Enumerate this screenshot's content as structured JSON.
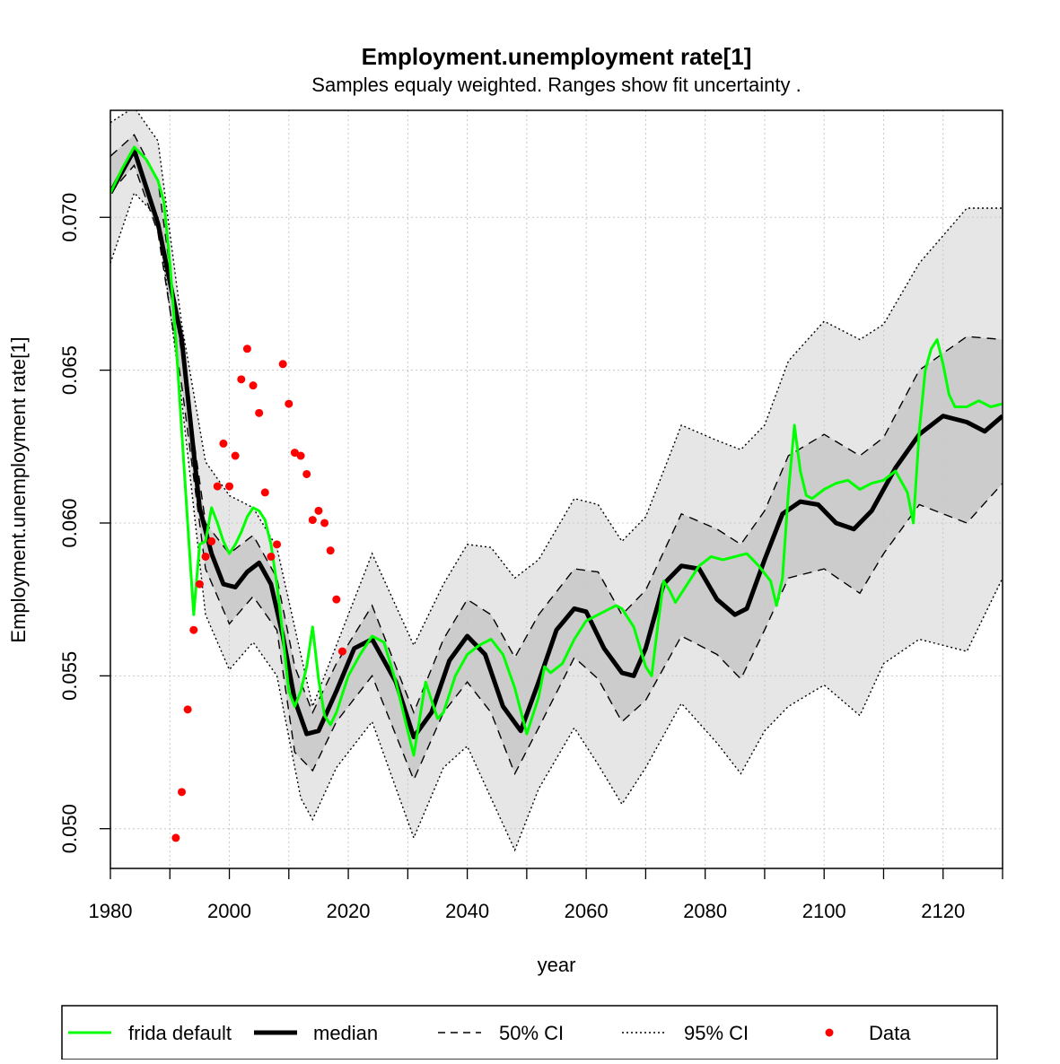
{
  "chart_data": {
    "type": "line",
    "title": "Employment.unemployment rate[1]",
    "subtitle": "Samples equaly weighted. Ranges show  fit uncertainty .",
    "xlabel": "year",
    "ylabel": "Employment.unemployment rate[1]",
    "xlim": [
      1980,
      2130
    ],
    "ylim": [
      0.0487,
      0.0735
    ],
    "x_ticks": [
      1980,
      2000,
      2020,
      2040,
      2060,
      2080,
      2100,
      2120
    ],
    "y_ticks": [
      0.05,
      0.055,
      0.06,
      0.065,
      0.07
    ],
    "y_tick_labels": [
      "0.050",
      "0.055",
      "0.060",
      "0.065",
      "0.070"
    ],
    "grid": true,
    "legend_position": "bottom",
    "legend": [
      {
        "label": "frida default",
        "style": "green-line"
      },
      {
        "label": "median",
        "style": "thick-black-line"
      },
      {
        "label": "50% CI",
        "style": "dashed-line"
      },
      {
        "label": "95% CI",
        "style": "dotted-line"
      },
      {
        "label": "Data",
        "style": "red-point"
      }
    ],
    "colors": {
      "frida_default": "#00ff00",
      "median": "#000000",
      "ci50_fill": "#cccccc",
      "ci95_fill": "#e6e6e6",
      "data": "#ff0000",
      "grid": "#c8c8c8"
    },
    "ci95": {
      "x": [
        1980,
        1984,
        1988,
        1992,
        1996,
        2000,
        2004,
        2008,
        2012,
        2014,
        2018,
        2024,
        2031,
        2036,
        2040,
        2044,
        2048,
        2052,
        2058,
        2062,
        2066,
        2070,
        2076,
        2082,
        2086,
        2090,
        2094,
        2100,
        2106,
        2110,
        2116,
        2124,
        2130
      ],
      "upper": [
        0.0731,
        0.0736,
        0.0725,
        0.0665,
        0.062,
        0.0609,
        0.0605,
        0.0592,
        0.0557,
        0.054,
        0.056,
        0.059,
        0.056,
        0.058,
        0.0593,
        0.0592,
        0.0582,
        0.0588,
        0.0608,
        0.0606,
        0.0594,
        0.0602,
        0.0632,
        0.0627,
        0.0624,
        0.0632,
        0.0653,
        0.0666,
        0.066,
        0.0665,
        0.0685,
        0.0703,
        0.0703
      ],
      "lower": [
        0.0685,
        0.0708,
        0.07,
        0.064,
        0.057,
        0.0552,
        0.0561,
        0.055,
        0.051,
        0.0503,
        0.052,
        0.0535,
        0.0497,
        0.052,
        0.0527,
        0.051,
        0.0493,
        0.0513,
        0.0533,
        0.0521,
        0.0508,
        0.052,
        0.0541,
        0.0528,
        0.0518,
        0.0532,
        0.054,
        0.0547,
        0.0537,
        0.0554,
        0.0562,
        0.0558,
        0.0582
      ]
    },
    "ci50": {
      "x": [
        1980,
        1984,
        1988,
        1992,
        1996,
        2000,
        2004,
        2008,
        2011,
        2014,
        2018,
        2024,
        2031,
        2036,
        2040,
        2044,
        2048,
        2052,
        2058,
        2062,
        2066,
        2070,
        2076,
        2082,
        2086,
        2090,
        2094,
        2100,
        2106,
        2110,
        2116,
        2124,
        2130
      ],
      "upper": [
        0.072,
        0.0727,
        0.0712,
        0.0655,
        0.06,
        0.059,
        0.0596,
        0.0582,
        0.0553,
        0.0538,
        0.0554,
        0.0573,
        0.0538,
        0.0562,
        0.0575,
        0.057,
        0.0556,
        0.057,
        0.0585,
        0.0584,
        0.057,
        0.0578,
        0.0603,
        0.0598,
        0.0593,
        0.0604,
        0.0622,
        0.0629,
        0.0622,
        0.0628,
        0.065,
        0.0661,
        0.066
      ],
      "lower": [
        0.0708,
        0.0717,
        0.0695,
        0.0645,
        0.0585,
        0.0567,
        0.0576,
        0.0565,
        0.0525,
        0.0519,
        0.0535,
        0.055,
        0.0516,
        0.0538,
        0.0548,
        0.0538,
        0.0518,
        0.0533,
        0.0556,
        0.0549,
        0.0535,
        0.0542,
        0.0563,
        0.0557,
        0.0549,
        0.0565,
        0.0582,
        0.0585,
        0.0577,
        0.059,
        0.0606,
        0.06,
        0.0613
      ]
    },
    "median": {
      "x": [
        1980,
        1984,
        1988,
        1992,
        1995,
        1997,
        1999,
        2001,
        2003,
        2005,
        2007,
        2009,
        2011,
        2013,
        2015,
        2018,
        2021,
        2024,
        2028,
        2031,
        2034,
        2037,
        2040,
        2043,
        2046,
        2049,
        2052,
        2055,
        2058,
        2060,
        2063,
        2066,
        2068,
        2070,
        2073,
        2076,
        2079,
        2082,
        2085,
        2087,
        2090,
        2093,
        2096,
        2099,
        2102,
        2105,
        2108,
        2112,
        2116,
        2120,
        2124,
        2127,
        2130
      ],
      "values": [
        0.0708,
        0.0722,
        0.0698,
        0.066,
        0.0605,
        0.059,
        0.058,
        0.0579,
        0.0584,
        0.0587,
        0.058,
        0.0563,
        0.0542,
        0.0531,
        0.0532,
        0.0545,
        0.0559,
        0.0562,
        0.0548,
        0.053,
        0.0538,
        0.0555,
        0.0563,
        0.0557,
        0.054,
        0.0532,
        0.0548,
        0.0565,
        0.0572,
        0.0571,
        0.0559,
        0.0551,
        0.055,
        0.0559,
        0.058,
        0.0586,
        0.0585,
        0.0575,
        0.057,
        0.0572,
        0.0588,
        0.0603,
        0.0607,
        0.0606,
        0.06,
        0.0598,
        0.0604,
        0.0618,
        0.0629,
        0.0635,
        0.0633,
        0.063,
        0.0635
      ]
    },
    "frida_default": {
      "x": [
        1980,
        1982,
        1984,
        1986,
        1988,
        1989,
        1990,
        1991,
        1992,
        1993,
        1994,
        1995,
        1996,
        1997,
        1998,
        1999,
        2000,
        2001,
        2002,
        2003,
        2004,
        2005,
        2006,
        2007,
        2008,
        2009,
        2010,
        2011,
        2012,
        2013,
        2014,
        2015,
        2016,
        2017,
        2018,
        2020,
        2022,
        2024,
        2026,
        2028,
        2030,
        2031,
        2032,
        2033,
        2034,
        2035,
        2036,
        2038,
        2040,
        2042,
        2044,
        2046,
        2048,
        2050,
        2052,
        2053,
        2054,
        2056,
        2058,
        2060,
        2062,
        2064,
        2065,
        2066,
        2068,
        2070,
        2071,
        2072,
        2073,
        2074,
        2075,
        2077,
        2079,
        2081,
        2083,
        2085,
        2087,
        2089,
        2091,
        2092,
        2093,
        2094,
        2095,
        2096,
        2097,
        2098,
        2100,
        2102,
        2104,
        2106,
        2108,
        2110,
        2112,
        2114,
        2115,
        2116,
        2117,
        2118,
        2119,
        2120,
        2121,
        2122,
        2124,
        2126,
        2128,
        2130
      ],
      "values": [
        0.0708,
        0.0716,
        0.0723,
        0.0719,
        0.0712,
        0.0705,
        0.0685,
        0.066,
        0.063,
        0.06,
        0.057,
        0.0593,
        0.0594,
        0.0605,
        0.06,
        0.0594,
        0.059,
        0.0593,
        0.0597,
        0.0602,
        0.0605,
        0.0604,
        0.0601,
        0.0593,
        0.058,
        0.0563,
        0.0545,
        0.054,
        0.0545,
        0.0553,
        0.0566,
        0.0549,
        0.0537,
        0.0534,
        0.0538,
        0.055,
        0.0557,
        0.0563,
        0.0561,
        0.0548,
        0.0532,
        0.0524,
        0.0536,
        0.0548,
        0.0542,
        0.0536,
        0.0538,
        0.055,
        0.0557,
        0.056,
        0.0562,
        0.0557,
        0.0546,
        0.0531,
        0.0543,
        0.0553,
        0.0551,
        0.0554,
        0.0562,
        0.0568,
        0.057,
        0.0572,
        0.0573,
        0.0572,
        0.0566,
        0.0553,
        0.055,
        0.0566,
        0.0581,
        0.0578,
        0.0574,
        0.058,
        0.0586,
        0.0589,
        0.0588,
        0.0589,
        0.059,
        0.0586,
        0.0581,
        0.0573,
        0.0582,
        0.061,
        0.0632,
        0.0617,
        0.0609,
        0.0608,
        0.0611,
        0.0613,
        0.0614,
        0.0611,
        0.0613,
        0.0614,
        0.0617,
        0.061,
        0.06,
        0.063,
        0.065,
        0.0657,
        0.066,
        0.0652,
        0.0642,
        0.0638,
        0.0638,
        0.064,
        0.0638,
        0.0639
      ]
    },
    "data_points": {
      "x": [
        1991,
        1992,
        1993,
        1994,
        1995,
        1996,
        1997,
        1998,
        1999,
        2000,
        2001,
        2002,
        2003,
        2004,
        2005,
        2006,
        2007,
        2008,
        2009,
        2010,
        2011,
        2012,
        2013,
        2014,
        2015,
        2016,
        2017,
        2018,
        2019
      ],
      "values": [
        0.0497,
        0.0512,
        0.0539,
        0.0565,
        0.058,
        0.0589,
        0.0594,
        0.0612,
        0.0626,
        0.0612,
        0.0622,
        0.0647,
        0.0657,
        0.0645,
        0.0636,
        0.061,
        0.0589,
        0.0593,
        0.0652,
        0.0639,
        0.0623,
        0.0622,
        0.0616,
        0.0601,
        0.0604,
        0.06,
        0.0591,
        0.0575,
        0.0558
      ]
    }
  }
}
